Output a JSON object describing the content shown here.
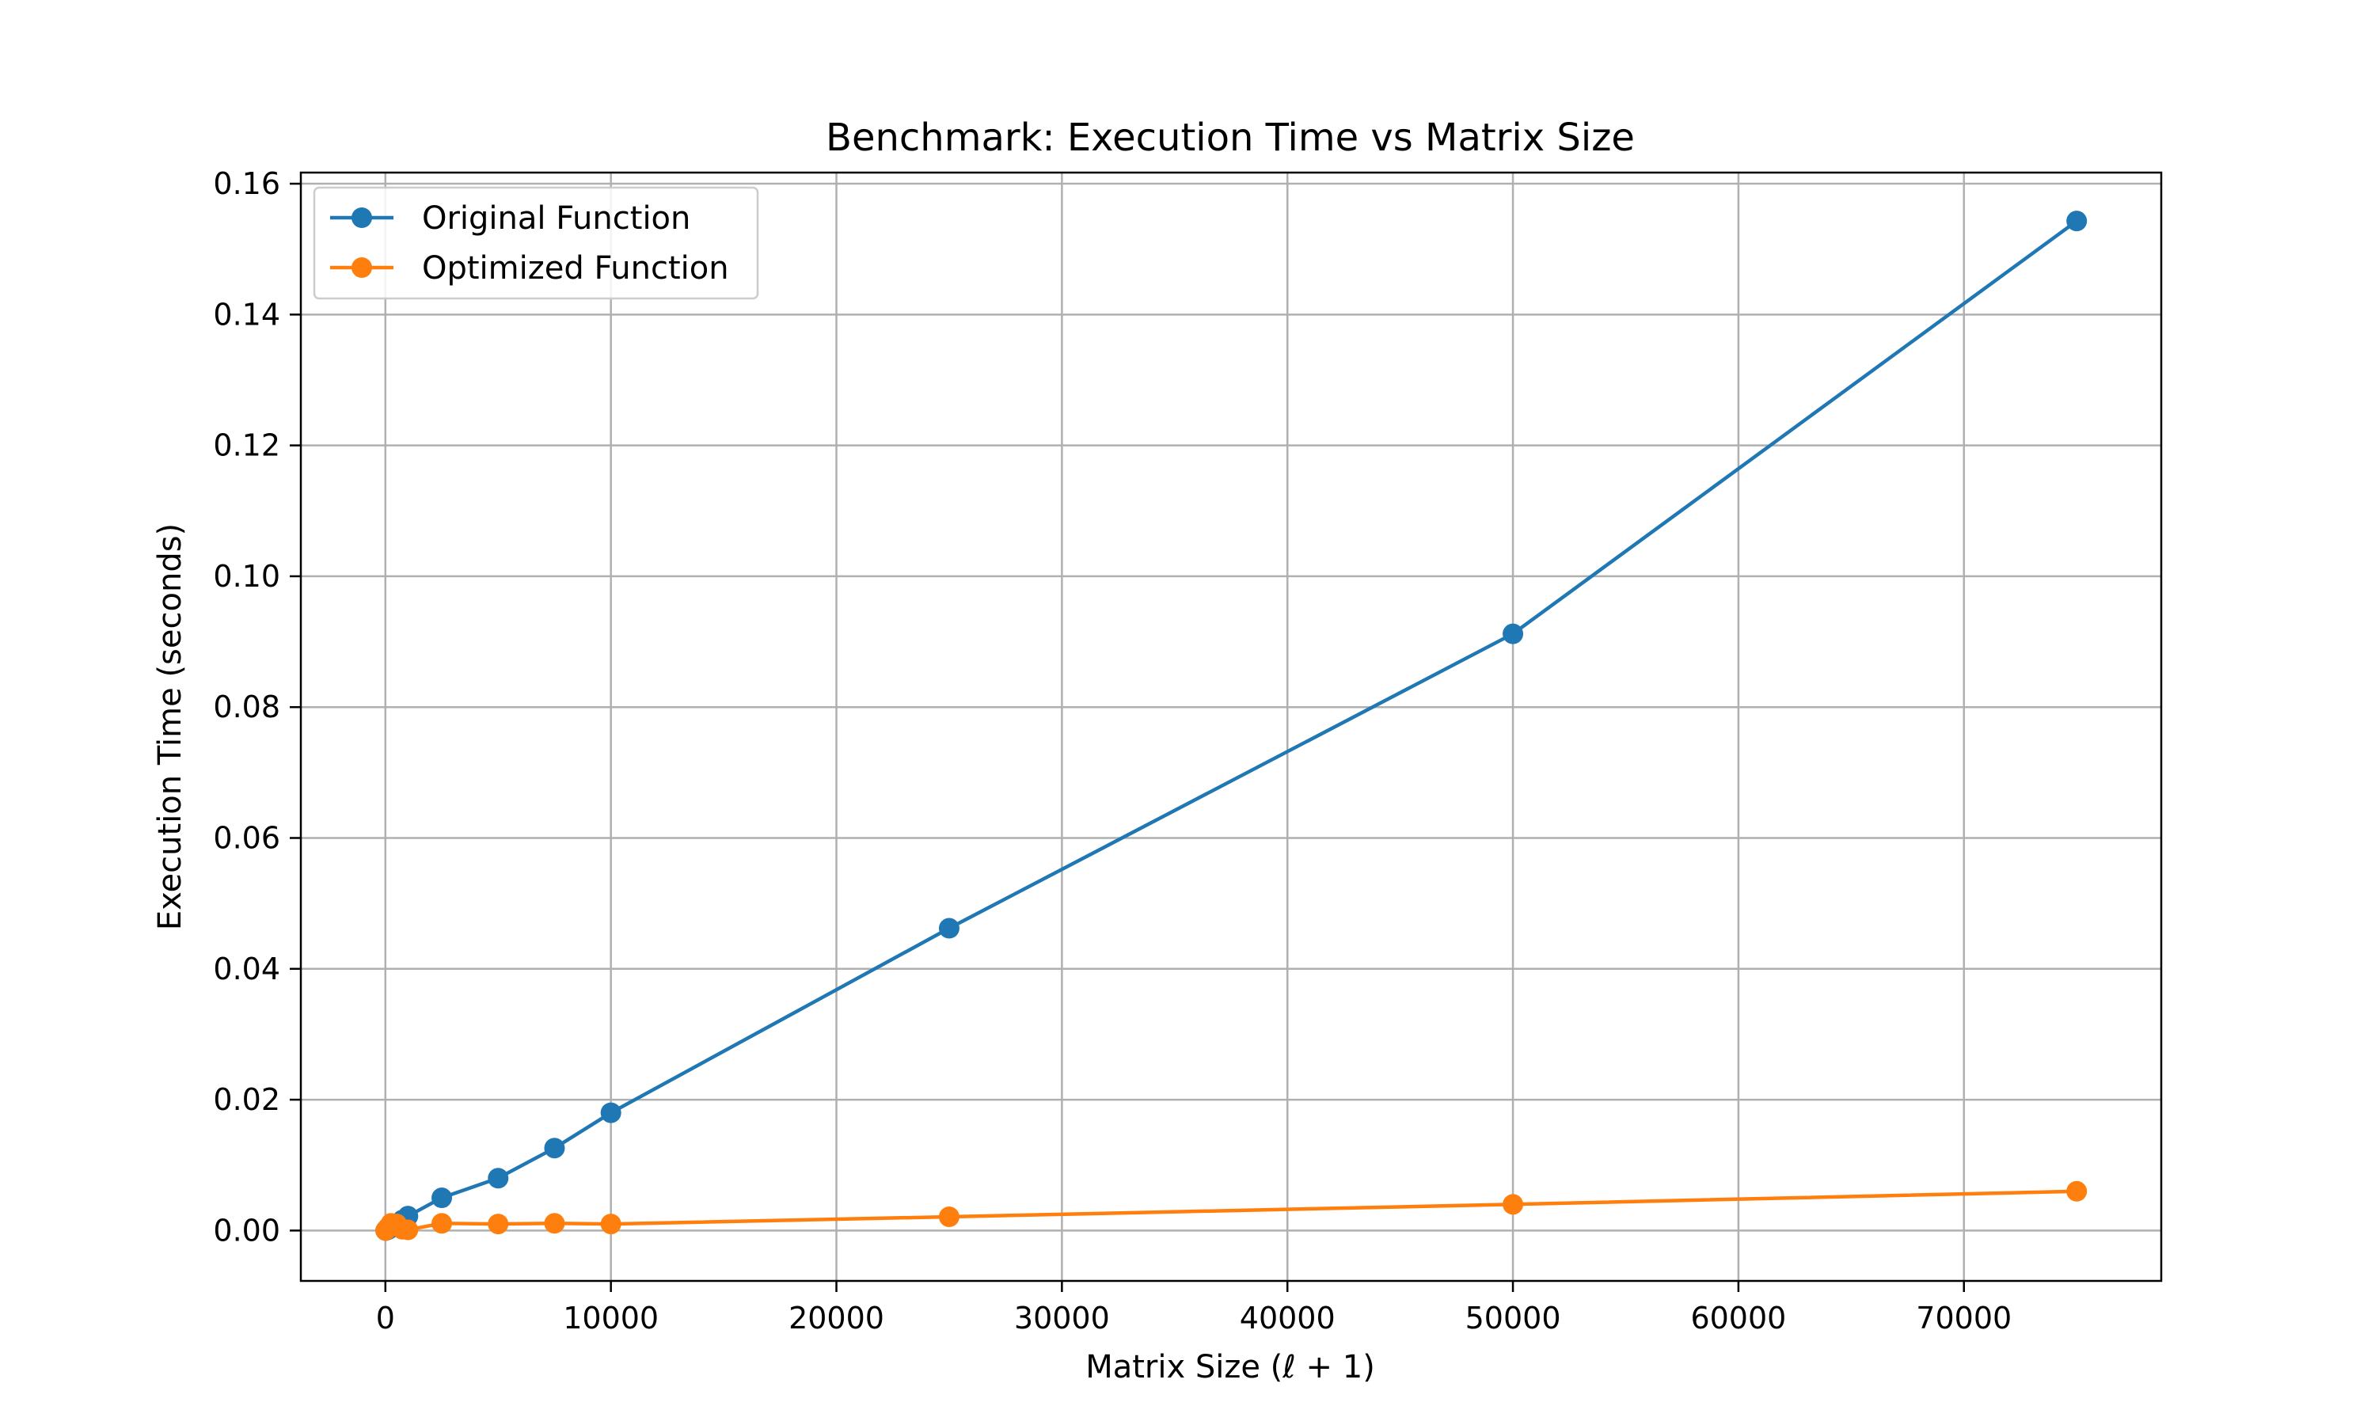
{
  "chart_data": {
    "type": "line",
    "title": "Benchmark: Execution Time vs Matrix Size",
    "xlabel": "Matrix Size (ℓ + 1)",
    "ylabel": "Execution Time (seconds)",
    "xlim": [
      -3750,
      78750
    ],
    "ylim": [
      -0.0077,
      0.1617
    ],
    "xticks": [
      0,
      10000,
      20000,
      30000,
      40000,
      50000,
      60000,
      70000
    ],
    "xtick_labels": [
      "0",
      "10000",
      "20000",
      "30000",
      "40000",
      "50000",
      "60000",
      "70000"
    ],
    "yticks": [
      0.0,
      0.02,
      0.04,
      0.06,
      0.08,
      0.1,
      0.12,
      0.14,
      0.16
    ],
    "ytick_labels": [
      "0.00",
      "0.02",
      "0.04",
      "0.06",
      "0.08",
      "0.10",
      "0.12",
      "0.14",
      "0.16"
    ],
    "grid": true,
    "legend_position": "top-left",
    "series": [
      {
        "name": "Original Function",
        "color": "#1f77b4",
        "marker": "circle",
        "x": [
          10,
          100,
          250,
          500,
          750,
          1000,
          2500,
          5000,
          7500,
          10000,
          25000,
          50000,
          75000
        ],
        "y": [
          0.0,
          0.0001,
          0.0004,
          0.001,
          0.0016,
          0.0022,
          0.005,
          0.008,
          0.0126,
          0.018,
          0.0462,
          0.0912,
          0.1543
        ]
      },
      {
        "name": "Optimized Function",
        "color": "#ff7f0e",
        "marker": "circle",
        "x": [
          10,
          100,
          250,
          500,
          750,
          1000,
          2500,
          5000,
          7500,
          10000,
          25000,
          50000,
          75000
        ],
        "y": [
          0.0,
          0.0004,
          0.0011,
          0.001,
          0.0002,
          0.0001,
          0.0011,
          0.001,
          0.0011,
          0.001,
          0.0021,
          0.004,
          0.006
        ]
      }
    ]
  }
}
